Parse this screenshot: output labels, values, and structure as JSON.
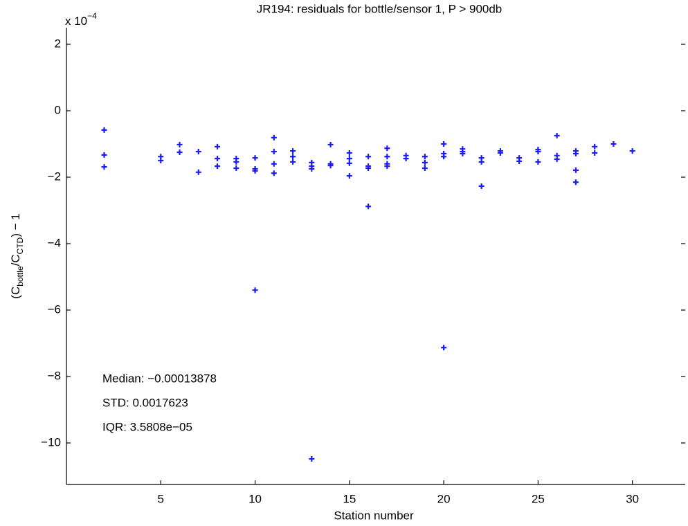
{
  "chart_data": {
    "type": "scatter",
    "title": "JR194: residuals for bottle/sensor 1, P > 900db",
    "xlabel": "Station number",
    "ylabel_parts": [
      "(C",
      "bottle",
      "/C",
      "CTD",
      ") − 1"
    ],
    "exponent_parts": [
      "x 10",
      "−4"
    ],
    "annotations": [
      "Median: −0.00013878",
      "STD: 0.0017623",
      "IQR: 3.5808e−05"
    ],
    "color": "#1a1aff",
    "xlim": [
      0,
      32.8
    ],
    "ylim": [
      -11.25,
      2.5
    ],
    "xticks": [
      5,
      10,
      15,
      20,
      25,
      30
    ],
    "yticks": [
      2,
      0,
      {
        "value": -2,
        "label": "−2"
      },
      {
        "value": -4,
        "label": "−4"
      },
      {
        "value": -6,
        "label": "−6"
      },
      {
        "value": -8,
        "label": "−8"
      },
      {
        "value": -10,
        "label": "−10"
      }
    ],
    "x": [
      2,
      2,
      2,
      5,
      5,
      6,
      6,
      7,
      7,
      8,
      8,
      8,
      9,
      9,
      9,
      10,
      10,
      10,
      10,
      11,
      11,
      11,
      11,
      12,
      12,
      12,
      13,
      13,
      13,
      13,
      14,
      14,
      14,
      15,
      15,
      15,
      15,
      16,
      16,
      16,
      16,
      17,
      17,
      17,
      17,
      18,
      18,
      19,
      19,
      19,
      20,
      20,
      20,
      20,
      21,
      21,
      21,
      22,
      22,
      22,
      23,
      23,
      24,
      24,
      25,
      25,
      25,
      26,
      26,
      26,
      27,
      27,
      27,
      27,
      28,
      28,
      29,
      30
    ],
    "y": [
      -0.58,
      -1.33,
      -1.69,
      -1.38,
      -1.5,
      -1.02,
      -1.25,
      -1.23,
      -1.85,
      -1.08,
      -1.44,
      -1.67,
      -1.44,
      -1.54,
      -1.73,
      -1.42,
      -1.75,
      -1.81,
      -5.4,
      -0.81,
      -1.23,
      -1.6,
      -1.88,
      -1.21,
      -1.38,
      -1.54,
      -1.56,
      -1.67,
      -1.75,
      -10.48,
      -1.02,
      -1.6,
      -1.65,
      -1.27,
      -1.44,
      -1.58,
      -1.96,
      -1.38,
      -1.67,
      -1.73,
      -2.88,
      -1.13,
      -1.38,
      -1.6,
      -1.67,
      -1.35,
      -1.44,
      -1.38,
      -1.56,
      -1.73,
      -1.0,
      -1.29,
      -1.38,
      -7.13,
      -1.15,
      -1.23,
      -1.29,
      -1.42,
      -1.54,
      -2.27,
      -1.21,
      -1.27,
      -1.42,
      -1.52,
      -1.17,
      -1.23,
      -1.54,
      -0.75,
      -1.35,
      -1.46,
      -1.21,
      -1.29,
      -1.79,
      -2.15,
      -1.08,
      -1.27,
      -1.0,
      -1.21
    ]
  }
}
